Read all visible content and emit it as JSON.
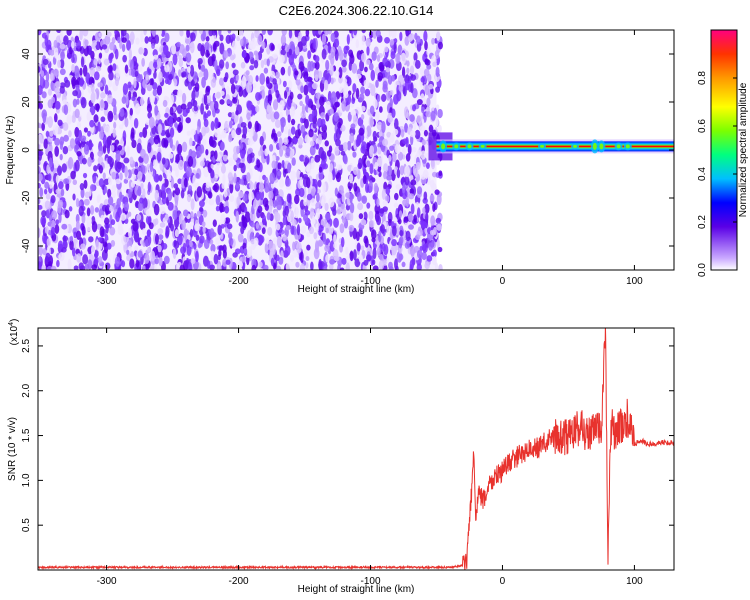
{
  "figure": {
    "title": "C2E6.2024.306.22.10.G14"
  },
  "chart_data": [
    {
      "type": "heatmap",
      "xlabel": "Height of straight line (km)",
      "ylabel": "Frequency (Hz)",
      "xlim": [
        -352,
        130
      ],
      "ylim": [
        -50,
        50
      ],
      "xticks": [
        -300,
        -200,
        -100,
        0,
        100
      ],
      "yticks": [
        -40,
        -20,
        0,
        20,
        40
      ],
      "noise_region_x": [
        -352,
        -50
      ],
      "signal_line_y": 1.5,
      "signal_region_x": [
        -50,
        130
      ],
      "colorbar": {
        "label": "Normalized spectral amplitude",
        "range": [
          0,
          1
        ],
        "ticks": [
          0.0,
          0.2,
          0.4,
          0.6,
          0.8
        ]
      }
    },
    {
      "type": "line",
      "xlabel": "Height of straight line (km)",
      "ylabel": "SNR (10 * v/v)",
      "y_multiplier": "(x10",
      "y_multiplier_exp": "4",
      "y_multiplier_close": ")",
      "xlim": [
        -352,
        130
      ],
      "ylim": [
        0.0,
        2.7
      ],
      "xticks": [
        -300,
        -200,
        -100,
        0,
        100
      ],
      "yticks": [
        0.5,
        1.0,
        1.5,
        2.0,
        2.5
      ],
      "ytick_labels": [
        "0.5",
        "1.0",
        "1.5",
        "2.0",
        "2.5"
      ],
      "grid": false,
      "series": [
        {
          "color": "#e8322d",
          "x": [
            -352,
            -300,
            -200,
            -100,
            -40,
            -30,
            -27,
            -25,
            -23,
            -22,
            -20,
            -18,
            -15,
            -10,
            -5,
            0,
            5,
            10,
            15,
            20,
            25,
            30,
            35,
            40,
            45,
            50,
            55,
            60,
            65,
            70,
            75,
            78,
            80,
            82,
            85,
            90,
            95,
            100,
            105,
            110,
            120,
            130
          ],
          "y": [
            0.03,
            0.03,
            0.03,
            0.03,
            0.03,
            0.05,
            0.1,
            0.6,
            0.9,
            1.35,
            0.55,
            0.9,
            0.75,
            0.95,
            1.05,
            1.1,
            1.2,
            1.25,
            1.3,
            1.35,
            1.35,
            1.4,
            1.45,
            1.5,
            1.45,
            1.5,
            1.55,
            1.6,
            1.5,
            1.55,
            1.6,
            2.7,
            0.1,
            1.6,
            1.55,
            1.6,
            1.7,
            1.4,
            1.45,
            1.4,
            1.42,
            1.42
          ]
        }
      ]
    }
  ]
}
